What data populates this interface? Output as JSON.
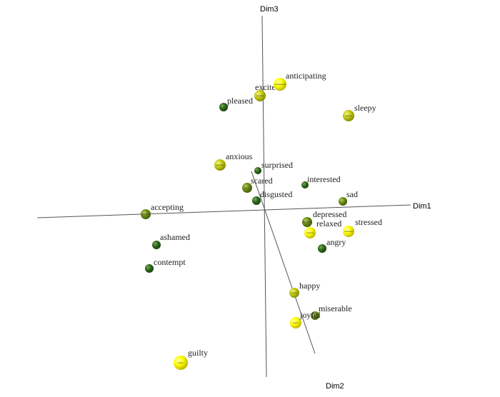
{
  "chart_data": {
    "type": "scatter",
    "title": "",
    "axes": [
      {
        "name": "Dim1"
      },
      {
        "name": "Dim2"
      },
      {
        "name": "Dim3"
      }
    ],
    "colors": {
      "yellow": "#ffff00",
      "yellow_green": "#b7c400",
      "olive_green": "#6d8e12",
      "dark_green": "#2f6b1c",
      "axis": "#555555"
    },
    "points": [
      {
        "label": "anticipating",
        "color": "yellow"
      },
      {
        "label": "excited",
        "color": "yellow_green"
      },
      {
        "label": "pleased",
        "color": "dark_green"
      },
      {
        "label": "sleepy",
        "color": "yellow_green"
      },
      {
        "label": "anxious",
        "color": "yellow_green"
      },
      {
        "label": "surprised",
        "color": "dark_green"
      },
      {
        "label": "interested",
        "color": "dark_green"
      },
      {
        "label": "scared",
        "color": "olive_green"
      },
      {
        "label": "disgusted",
        "color": "dark_green"
      },
      {
        "label": "sad",
        "color": "olive_green"
      },
      {
        "label": "accepting",
        "color": "olive_green"
      },
      {
        "label": "depressed",
        "color": "olive_green"
      },
      {
        "label": "relaxed",
        "color": "yellow"
      },
      {
        "label": "stressed",
        "color": "yellow"
      },
      {
        "label": "angry",
        "color": "dark_green"
      },
      {
        "label": "ashamed",
        "color": "dark_green"
      },
      {
        "label": "contempt",
        "color": "dark_green"
      },
      {
        "label": "happy",
        "color": "yellow_green"
      },
      {
        "label": "miserable",
        "color": "olive_green"
      },
      {
        "label": "joyful",
        "color": "yellow"
      },
      {
        "label": "guilty",
        "color": "yellow"
      }
    ]
  }
}
